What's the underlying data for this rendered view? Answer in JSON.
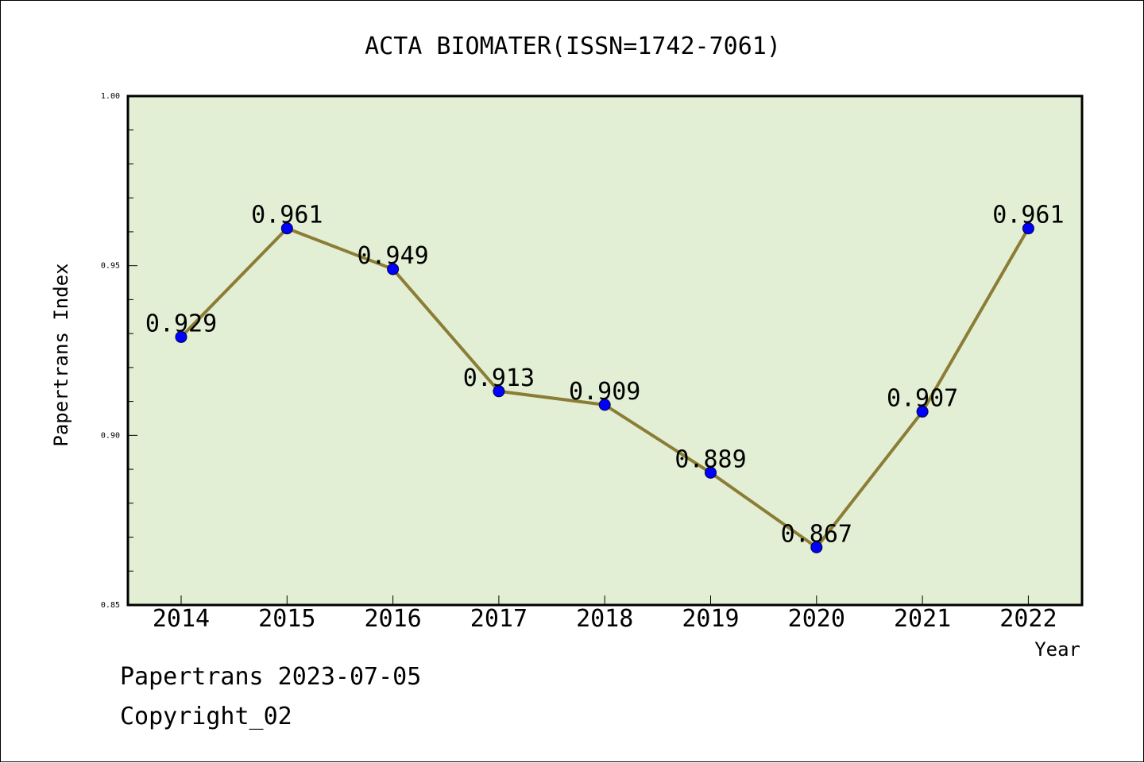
{
  "chart_data": {
    "type": "line",
    "title": "ACTA BIOMATER(ISSN=1742-7061)",
    "xlabel": "Year",
    "ylabel": "Papertrans Index",
    "categories": [
      "2014",
      "2015",
      "2016",
      "2017",
      "2018",
      "2019",
      "2020",
      "2021",
      "2022"
    ],
    "series": [
      {
        "values": [
          0.929,
          0.961,
          0.949,
          0.913,
          0.909,
          0.889,
          0.867,
          0.907,
          0.961
        ],
        "labels": [
          "0.929",
          "0.961",
          "0.949",
          "0.913",
          "0.909",
          "0.889",
          "0.867",
          "0.907",
          "0.961"
        ]
      }
    ],
    "ylim": [
      0.85,
      1.0
    ],
    "yticks": [
      "0.85",
      "0.90",
      "0.95",
      "1.00"
    ],
    "grid": false,
    "colors": {
      "plot_background": "#e2efd5",
      "line": "#8b7d35",
      "marker": "#0000ff"
    }
  },
  "footer": {
    "line1": "Papertrans 2023-07-05",
    "line2": "Copyright_02"
  }
}
